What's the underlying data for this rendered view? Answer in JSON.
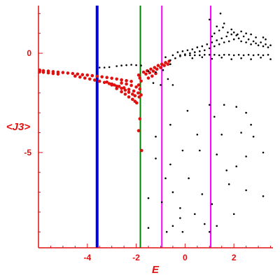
{
  "chart_data": {
    "type": "scatter",
    "title": "",
    "xlabel": "E",
    "ylabel": "<J3>",
    "xlim": [
      -6.0,
      3.6
    ],
    "ylim": [
      -9.8,
      2.4
    ],
    "xticks": [
      {
        "value": -4,
        "label": "-4"
      },
      {
        "value": -2,
        "label": "-2"
      },
      {
        "value": 0,
        "label": "0"
      },
      {
        "value": 2,
        "label": "2"
      }
    ],
    "yticks": [
      {
        "value": 0,
        "label": "0"
      },
      {
        "value": -5,
        "label": "-5"
      }
    ],
    "grid": false,
    "axis_color": "#e01010",
    "vertical_lines": [
      {
        "x": -3.6,
        "color": "#0000e6"
      },
      {
        "x": -1.83,
        "color": "#008000"
      },
      {
        "x": -0.95,
        "color": "#ff00ff"
      },
      {
        "x": 1.05,
        "color": "#ff00ff"
      }
    ],
    "series": [
      {
        "color": "#e01010",
        "marker_size": 2.3,
        "points": [
          [
            -5.95,
            -0.85
          ],
          [
            -5.8,
            -0.88
          ],
          [
            -5.6,
            -0.9
          ],
          [
            -5.4,
            -0.93
          ],
          [
            -5.2,
            -0.95
          ],
          [
            -5.0,
            -0.97
          ],
          [
            -4.8,
            -1.0
          ],
          [
            -4.6,
            -1.02
          ],
          [
            -4.4,
            -1.05
          ],
          [
            -4.2,
            -1.08
          ],
          [
            -4.0,
            -1.1
          ],
          [
            -3.8,
            -1.13
          ],
          [
            -3.6,
            -1.16
          ],
          [
            -3.4,
            -1.19
          ],
          [
            -3.2,
            -1.22
          ],
          [
            -3.0,
            -1.26
          ],
          [
            -2.8,
            -1.3
          ],
          [
            -2.6,
            -1.34
          ],
          [
            -2.4,
            -1.38
          ],
          [
            -2.2,
            -1.42
          ],
          [
            -5.95,
            -0.93
          ],
          [
            -5.8,
            -0.96
          ],
          [
            -5.6,
            -0.99
          ],
          [
            -5.4,
            -1.02
          ],
          [
            -5.2,
            -1.05
          ],
          [
            -4.5,
            -1.15
          ],
          [
            -4.3,
            -1.2
          ],
          [
            -4.1,
            -1.25
          ],
          [
            -3.9,
            -1.3
          ],
          [
            -3.7,
            -1.35
          ],
          [
            -3.5,
            -1.41
          ],
          [
            -3.3,
            -1.47
          ],
          [
            -3.1,
            -1.53
          ],
          [
            -2.9,
            -1.6
          ],
          [
            -2.7,
            -1.67
          ],
          [
            -2.5,
            -1.74
          ],
          [
            -2.3,
            -1.82
          ],
          [
            -2.1,
            -1.9
          ],
          [
            -3.2,
            -1.45
          ],
          [
            -3.0,
            -1.55
          ],
          [
            -2.8,
            -1.66
          ],
          [
            -2.6,
            -1.77
          ],
          [
            -2.45,
            -1.86
          ],
          [
            -2.3,
            -1.96
          ],
          [
            -2.15,
            -2.06
          ],
          [
            -2.05,
            -2.14
          ],
          [
            -3.0,
            -1.6
          ],
          [
            -2.8,
            -1.78
          ],
          [
            -2.6,
            -1.94
          ],
          [
            -2.45,
            -2.06
          ],
          [
            -2.3,
            -2.2
          ],
          [
            -2.15,
            -2.32
          ],
          [
            -2.05,
            -2.42
          ],
          [
            -1.98,
            -2.5
          ],
          [
            -2.6,
            -1.5
          ],
          [
            -2.4,
            -1.55
          ],
          [
            -2.2,
            -1.62
          ],
          [
            -2.0,
            -1.7
          ],
          [
            -1.9,
            -1.1
          ],
          [
            -1.85,
            -1.25
          ],
          [
            -1.8,
            -1.4
          ],
          [
            -1.9,
            -1.6
          ],
          [
            -1.85,
            -1.8
          ],
          [
            -1.92,
            -2.0
          ],
          [
            -1.8,
            -2.1
          ],
          [
            -1.88,
            -2.2
          ],
          [
            -1.7,
            -0.95
          ],
          [
            -1.55,
            -0.88
          ],
          [
            -1.4,
            -0.8
          ],
          [
            -1.25,
            -0.72
          ],
          [
            -1.1,
            -0.62
          ],
          [
            -0.95,
            -0.55
          ],
          [
            -0.8,
            -0.47
          ],
          [
            -0.65,
            -0.4
          ],
          [
            -1.6,
            -1.05
          ],
          [
            -1.45,
            -0.98
          ],
          [
            -1.3,
            -0.9
          ],
          [
            -1.15,
            -0.8
          ],
          [
            -1.0,
            -0.72
          ],
          [
            -0.85,
            -0.62
          ],
          [
            -0.7,
            -0.55
          ],
          [
            -1.5,
            -1.25
          ],
          [
            -1.35,
            -1.15
          ],
          [
            -1.2,
            -1.02
          ],
          [
            -1.85,
            -3.3
          ],
          [
            -1.9,
            -3.9
          ],
          [
            -1.78,
            -4.9
          ]
        ]
      },
      {
        "color": "#000000",
        "marker_size": 1.3,
        "points": [
          [
            -2.8,
            -0.65
          ],
          [
            -2.6,
            -0.62
          ],
          [
            -2.4,
            -0.6
          ],
          [
            -2.2,
            -0.58
          ],
          [
            -2.0,
            -0.6
          ],
          [
            -1.8,
            -0.62
          ],
          [
            -3.5,
            -0.72
          ],
          [
            -3.3,
            -0.72
          ],
          [
            -3.1,
            -0.7
          ],
          [
            -1.5,
            -0.9
          ],
          [
            -1.2,
            -0.95
          ],
          [
            -0.9,
            -0.85
          ],
          [
            -0.6,
            -0.55
          ],
          [
            -1.3,
            -1.5
          ],
          [
            -1.0,
            -1.6
          ],
          [
            -0.7,
            -1.3
          ],
          [
            -0.5,
            -1.6
          ],
          [
            -0.8,
            -0.2
          ],
          [
            -0.6,
            -0.35
          ],
          [
            -0.5,
            -0.1
          ],
          [
            -0.4,
            -0.25
          ],
          [
            -0.3,
            0.05
          ],
          [
            -0.2,
            -0.15
          ],
          [
            -0.1,
            0.1
          ],
          [
            0.0,
            -0.05
          ],
          [
            0.1,
            0.15
          ],
          [
            0.2,
            0.0
          ],
          [
            0.3,
            0.2
          ],
          [
            0.4,
            0.05
          ],
          [
            0.5,
            0.3
          ],
          [
            0.6,
            0.1
          ],
          [
            0.7,
            0.35
          ],
          [
            0.8,
            0.15
          ],
          [
            0.9,
            0.45
          ],
          [
            1.0,
            0.25
          ],
          [
            1.1,
            0.55
          ],
          [
            1.2,
            0.35
          ],
          [
            1.3,
            0.65
          ],
          [
            1.4,
            0.45
          ],
          [
            1.5,
            0.75
          ],
          [
            1.6,
            0.55
          ],
          [
            1.7,
            0.85
          ],
          [
            1.8,
            0.6
          ],
          [
            1.9,
            0.95
          ],
          [
            2.0,
            0.7
          ],
          [
            2.1,
            0.9
          ],
          [
            2.2,
            0.75
          ],
          [
            2.3,
            0.6
          ],
          [
            2.4,
            0.85
          ],
          [
            2.5,
            0.55
          ],
          [
            2.6,
            0.7
          ],
          [
            2.7,
            0.45
          ],
          [
            2.8,
            0.6
          ],
          [
            2.9,
            0.5
          ],
          [
            3.0,
            0.4
          ],
          [
            3.1,
            0.55
          ],
          [
            3.2,
            0.35
          ],
          [
            3.3,
            0.45
          ],
          [
            3.4,
            0.3
          ],
          [
            3.5,
            0.4
          ],
          [
            -0.2,
            -0.1
          ],
          [
            0.0,
            -0.1
          ],
          [
            0.2,
            -0.1
          ],
          [
            0.4,
            -0.1
          ],
          [
            0.6,
            -0.1
          ],
          [
            0.8,
            -0.08
          ],
          [
            1.0,
            -0.08
          ],
          [
            1.2,
            -0.08
          ],
          [
            1.4,
            -0.1
          ],
          [
            1.6,
            -0.08
          ],
          [
            1.8,
            -0.08
          ],
          [
            2.0,
            -0.1
          ],
          [
            2.2,
            -0.08
          ],
          [
            2.4,
            -0.1
          ],
          [
            2.6,
            -0.08
          ],
          [
            2.8,
            -0.1
          ],
          [
            3.0,
            -0.08
          ],
          [
            3.2,
            -0.1
          ],
          [
            3.4,
            -0.08
          ],
          [
            0.3,
            -0.25
          ],
          [
            0.7,
            -0.2
          ],
          [
            1.1,
            -0.28
          ],
          [
            1.5,
            -0.22
          ],
          [
            1.9,
            -0.3
          ],
          [
            2.3,
            -0.25
          ],
          [
            2.7,
            -0.3
          ],
          [
            3.1,
            -0.22
          ],
          [
            3.5,
            -0.3
          ],
          [
            1.2,
            1.0
          ],
          [
            1.4,
            1.15
          ],
          [
            1.55,
            1.3
          ],
          [
            1.6,
            1.5
          ],
          [
            1.9,
            1.2
          ],
          [
            2.0,
            1.05
          ],
          [
            2.3,
            1.1
          ],
          [
            2.7,
            0.95
          ],
          [
            3.2,
            0.8
          ],
          [
            1.1,
            0.85
          ],
          [
            1.3,
            1.35
          ],
          [
            1.75,
            1.05
          ],
          [
            2.15,
            0.95
          ],
          [
            2.5,
            1.0
          ],
          [
            2.9,
            0.8
          ],
          [
            3.3,
            0.7
          ],
          [
            1.45,
            2.0
          ],
          [
            1.0,
            1.7
          ],
          [
            -1.2,
            -4.2
          ],
          [
            -0.6,
            -3.6
          ],
          [
            0.1,
            -2.9
          ],
          [
            1.0,
            -2.6
          ],
          [
            1.6,
            -2.6
          ],
          [
            2.1,
            -2.7
          ],
          [
            2.5,
            -3.0
          ],
          [
            2.7,
            -3.6
          ],
          [
            1.2,
            -3.2
          ],
          [
            0.5,
            -4.1
          ],
          [
            1.5,
            -4.1
          ],
          [
            2.3,
            -4.0
          ],
          [
            2.8,
            -4.2
          ],
          [
            -1.2,
            -5.3
          ],
          [
            -0.1,
            -4.9
          ],
          [
            0.6,
            -4.9
          ],
          [
            1.3,
            -5.1
          ],
          [
            2.5,
            -5.2
          ],
          [
            3.2,
            -5.0
          ],
          [
            -0.6,
            -5.6
          ],
          [
            1.7,
            -5.9
          ],
          [
            2.1,
            -5.7
          ],
          [
            -0.8,
            -6.3
          ],
          [
            0.15,
            -6.3
          ],
          [
            -0.5,
            -7.0
          ],
          [
            0.7,
            -7.1
          ],
          [
            1.8,
            -6.6
          ],
          [
            2.5,
            -6.9
          ],
          [
            3.2,
            -7.2
          ],
          [
            -1.5,
            -7.3
          ],
          [
            -0.95,
            -7.5
          ],
          [
            1.1,
            -7.6
          ],
          [
            -0.2,
            -8.3
          ],
          [
            0.8,
            -8.6
          ],
          [
            1.3,
            -8.7
          ],
          [
            2.0,
            -8.1
          ],
          [
            -0.2,
            -7.8
          ],
          [
            -1.5,
            -8.8
          ],
          [
            -0.5,
            -8.7
          ],
          [
            0.4,
            -8.1
          ],
          [
            -0.1,
            -9.0
          ],
          [
            1.0,
            -9.0
          ],
          [
            -0.75,
            -9.0
          ]
        ]
      }
    ]
  }
}
